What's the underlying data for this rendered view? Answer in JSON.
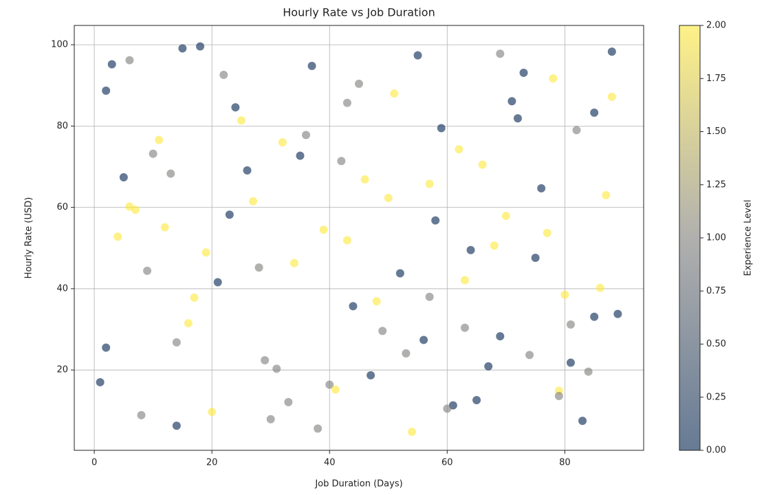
{
  "chart_data": {
    "type": "scatter",
    "title": "Hourly Rate vs Job Duration",
    "x_label": "Job Duration (Days)",
    "y_label": "Hourly Rate (USD)",
    "x": [
      3,
      17,
      42,
      65,
      88,
      12,
      29,
      51,
      76,
      8,
      34,
      59,
      81,
      22,
      47,
      70,
      5,
      38,
      63,
      85,
      14,
      27,
      55,
      79,
      10,
      44,
      68,
      2,
      31,
      57,
      83,
      19,
      49,
      73,
      7,
      36,
      61,
      86,
      24,
      53,
      77,
      15,
      40,
      66,
      89,
      1,
      28,
      50,
      72,
      20,
      45,
      69,
      11,
      33,
      58,
      80,
      6,
      26,
      54,
      75,
      16,
      43,
      67,
      87,
      9,
      37,
      62,
      84,
      23,
      48,
      71,
      4,
      30,
      56,
      78,
      13,
      41,
      64,
      82,
      21,
      46,
      74,
      18,
      39,
      60,
      85,
      25,
      52,
      79,
      6,
      35,
      63,
      88,
      14,
      43,
      69,
      2,
      32,
      57,
      81
    ],
    "values": [
      95.2,
      37.8,
      71.4,
      12.6,
      98.3,
      55.1,
      22.4,
      88.0,
      64.7,
      8.9,
      46.3,
      79.5,
      31.2,
      92.6,
      18.7,
      57.9,
      67.4,
      5.6,
      42.1,
      83.3,
      26.8,
      61.5,
      97.4,
      14.9,
      73.2,
      35.7,
      50.6,
      88.7,
      20.3,
      65.8,
      7.5,
      48.9,
      29.6,
      93.1,
      59.4,
      77.8,
      11.3,
      40.2,
      84.6,
      24.1,
      53.7,
      99.1,
      16.4,
      70.5,
      33.8,
      17.0,
      45.2,
      62.3,
      81.9,
      9.7,
      90.4,
      28.3,
      76.6,
      12.1,
      56.8,
      38.5,
      96.2,
      69.1,
      4.8,
      47.6,
      31.5,
      85.7,
      20.9,
      63.0,
      44.4,
      94.8,
      74.3,
      19.6,
      58.2,
      36.9,
      86.1,
      52.8,
      7.9,
      27.4,
      91.7,
      68.3,
      15.2,
      49.5,
      79.0,
      41.6,
      66.9,
      23.7,
      99.6,
      54.5,
      10.5,
      33.1,
      81.4,
      43.8,
      13.6,
      60.2,
      72.7,
      30.4,
      87.2,
      6.3,
      51.9,
      97.8,
      25.5,
      76.0,
      38.0,
      21.8
    ],
    "experience": [
      0,
      2,
      1,
      0,
      0,
      2,
      1,
      2,
      0,
      1,
      2,
      0,
      1,
      1,
      0,
      2,
      0,
      1,
      2,
      0,
      1,
      2,
      0,
      2,
      1,
      0,
      2,
      0,
      1,
      2,
      0,
      2,
      1,
      0,
      2,
      1,
      0,
      2,
      0,
      1,
      2,
      0,
      1,
      2,
      0,
      0,
      1,
      2,
      0,
      2,
      1,
      0,
      2,
      1,
      0,
      2,
      1,
      0,
      2,
      0,
      2,
      1,
      0,
      2,
      1,
      0,
      2,
      1,
      0,
      2,
      0,
      2,
      1,
      0,
      2,
      1,
      2,
      0,
      1,
      0,
      2,
      1,
      0,
      2,
      1,
      0,
      2,
      0,
      1,
      2,
      0,
      1,
      2,
      0,
      2,
      1,
      0,
      2,
      1,
      0
    ],
    "colormap": [
      "#00224e",
      "#7c7b78",
      "#fee838"
    ],
    "alpha": 0.6,
    "xlim": [
      -3.4,
      93.4
    ],
    "xticks": [
      0,
      20,
      40,
      60,
      80
    ],
    "ylim": [
      0.25,
      104.75
    ],
    "yticks": [
      20,
      40,
      60,
      80,
      100
    ],
    "grid": true,
    "colorbar_label": "Experience Level",
    "clim": [
      0,
      2
    ],
    "cticks": [
      {
        "value": 0,
        "label": "0.00"
      },
      {
        "value": 0.25,
        "label": "0.25"
      },
      {
        "value": 0.5,
        "label": "0.50"
      },
      {
        "value": 0.75,
        "label": "0.75"
      },
      {
        "value": 1,
        "label": "1.00"
      },
      {
        "value": 1.25,
        "label": "1.25"
      },
      {
        "value": 1.5,
        "label": "1.50"
      },
      {
        "value": 1.75,
        "label": "1.75"
      },
      {
        "value": 2,
        "label": "2.00"
      }
    ]
  }
}
